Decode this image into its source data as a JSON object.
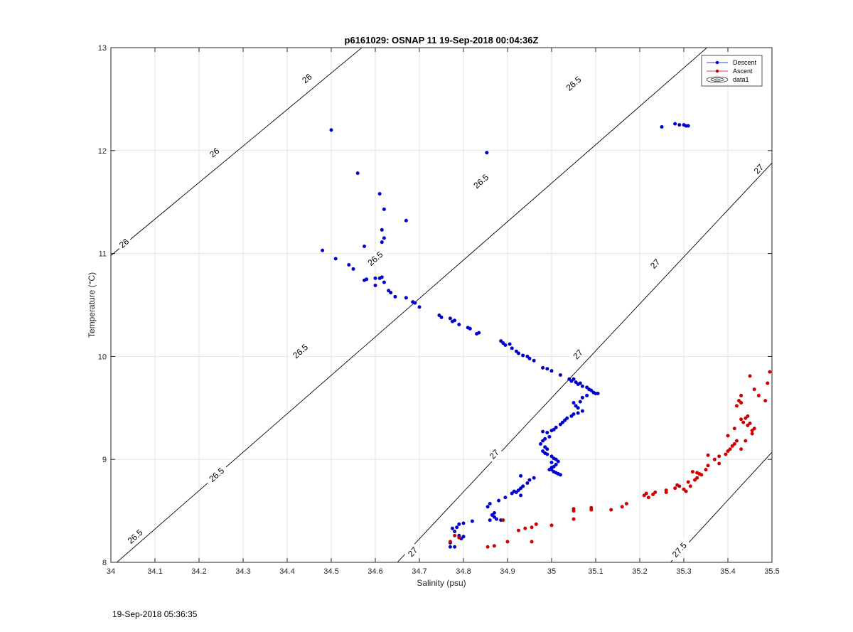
{
  "chart_data": {
    "type": "scatter",
    "title": "p6161029: OSNAP 11 19-Sep-2018 00:04:36Z",
    "xlabel": "Salinity (psu)",
    "ylabel": "Temperature (°C)",
    "xlim": [
      34,
      35.5
    ],
    "ylim": [
      8,
      13
    ],
    "x_ticks": [
      "34",
      "34.1",
      "34.2",
      "34.3",
      "34.4",
      "34.5",
      "34.6",
      "34.7",
      "34.8",
      "34.9",
      "35",
      "35.1",
      "35.2",
      "35.3",
      "35.4",
      "35.5"
    ],
    "y_ticks": [
      "8",
      "9",
      "10",
      "11",
      "12",
      "13"
    ],
    "grid": true,
    "legend_position": "top-right",
    "legend": [
      {
        "label": "Descent",
        "color": "#0000cc",
        "marker": "dot-line"
      },
      {
        "label": "Ascent",
        "color": "#cc0000",
        "marker": "dot-line"
      },
      {
        "label": "data1",
        "marker": "contour-icon"
      }
    ],
    "contours": [
      {
        "label": "26",
        "points": [
          [
            34.0,
            10.98
          ],
          [
            35.5,
            16.3
          ]
        ],
        "labels": [
          {
            "text": "26",
            "x": 34.03,
            "y": 11.1
          },
          {
            "text": "26",
            "x": 34.235,
            "y": 11.98
          },
          {
            "text": "26",
            "x": 34.445,
            "y": 12.7
          }
        ]
      },
      {
        "label": "26.5",
        "points": [
          [
            34.0,
            7.95
          ],
          [
            35.5,
            13.55
          ]
        ],
        "labels": [
          {
            "text": "26.5",
            "x": 34.055,
            "y": 8.25
          },
          {
            "text": "26.5",
            "x": 34.24,
            "y": 8.85
          },
          {
            "text": "26.5",
            "x": 34.43,
            "y": 10.05
          },
          {
            "text": "26.5",
            "x": 34.6,
            "y": 10.95
          },
          {
            "text": "26.5",
            "x": 34.84,
            "y": 11.7
          },
          {
            "text": "26.5",
            "x": 35.05,
            "y": 12.65
          }
        ]
      },
      {
        "label": "27",
        "points": [
          [
            34.65,
            8.0
          ],
          [
            35.5,
            11.88
          ]
        ],
        "labels": [
          {
            "text": "27",
            "x": 34.685,
            "y": 8.1
          },
          {
            "text": "27",
            "x": 34.87,
            "y": 9.05
          },
          {
            "text": "27",
            "x": 35.06,
            "y": 10.02
          },
          {
            "text": "27",
            "x": 35.235,
            "y": 10.9
          },
          {
            "text": "27",
            "x": 35.47,
            "y": 11.82
          }
        ]
      },
      {
        "label": "27.5",
        "points": [
          [
            35.27,
            8.0
          ],
          [
            35.5,
            9.07
          ]
        ],
        "labels": [
          {
            "text": "27.5",
            "x": 35.29,
            "y": 8.12
          }
        ]
      }
    ],
    "series": [
      {
        "name": "Descent",
        "color": "#0000cc",
        "points": [
          [
            34.853,
            11.98
          ],
          [
            34.5,
            12.2
          ],
          [
            35.25,
            12.23
          ],
          [
            35.28,
            12.26
          ],
          [
            35.29,
            12.25
          ],
          [
            35.3,
            12.25
          ],
          [
            35.305,
            12.24
          ],
          [
            35.31,
            12.24
          ],
          [
            34.56,
            11.78
          ],
          [
            34.61,
            11.58
          ],
          [
            34.62,
            11.43
          ],
          [
            34.615,
            11.23
          ],
          [
            34.62,
            11.15
          ],
          [
            34.615,
            11.11
          ],
          [
            34.67,
            11.32
          ],
          [
            34.575,
            11.07
          ],
          [
            34.48,
            11.03
          ],
          [
            34.51,
            10.95
          ],
          [
            34.54,
            10.89
          ],
          [
            34.55,
            10.85
          ],
          [
            34.575,
            10.74
          ],
          [
            34.58,
            10.75
          ],
          [
            34.6,
            10.76
          ],
          [
            34.61,
            10.76
          ],
          [
            34.615,
            10.77
          ],
          [
            34.6,
            10.69
          ],
          [
            34.62,
            10.72
          ],
          [
            34.63,
            10.64
          ],
          [
            34.635,
            10.62
          ],
          [
            34.645,
            10.58
          ],
          [
            34.67,
            10.57
          ],
          [
            34.685,
            10.53
          ],
          [
            34.69,
            10.52
          ],
          [
            34.7,
            10.48
          ],
          [
            34.745,
            10.4
          ],
          [
            34.75,
            10.38
          ],
          [
            34.77,
            10.37
          ],
          [
            34.775,
            10.34
          ],
          [
            34.78,
            10.35
          ],
          [
            34.79,
            10.31
          ],
          [
            34.81,
            10.28
          ],
          [
            34.815,
            10.27
          ],
          [
            34.83,
            10.22
          ],
          [
            34.835,
            10.23
          ],
          [
            34.885,
            10.15
          ],
          [
            34.89,
            10.13
          ],
          [
            34.895,
            10.11
          ],
          [
            34.905,
            10.12
          ],
          [
            34.91,
            10.08
          ],
          [
            34.92,
            10.05
          ],
          [
            34.925,
            10.03
          ],
          [
            34.935,
            10.01
          ],
          [
            34.945,
            10.0
          ],
          [
            34.95,
            9.98
          ],
          [
            34.96,
            9.96
          ],
          [
            34.98,
            9.89
          ],
          [
            34.99,
            9.88
          ],
          [
            35.0,
            9.86
          ],
          [
            35.02,
            9.82
          ],
          [
            35.04,
            9.78
          ],
          [
            35.045,
            9.76
          ],
          [
            35.05,
            9.78
          ],
          [
            35.055,
            9.75
          ],
          [
            35.06,
            9.73
          ],
          [
            35.065,
            9.74
          ],
          [
            35.07,
            9.71
          ],
          [
            35.08,
            9.7
          ],
          [
            35.085,
            9.68
          ],
          [
            35.09,
            9.67
          ],
          [
            35.095,
            9.65
          ],
          [
            35.1,
            9.64
          ],
          [
            35.105,
            9.64
          ],
          [
            35.08,
            9.62
          ],
          [
            35.07,
            9.6
          ],
          [
            35.065,
            9.56
          ],
          [
            35.05,
            9.55
          ],
          [
            35.055,
            9.52
          ],
          [
            35.06,
            9.5
          ],
          [
            35.07,
            9.47
          ],
          [
            35.06,
            9.45
          ],
          [
            35.05,
            9.44
          ],
          [
            35.045,
            9.42
          ],
          [
            35.035,
            9.4
          ],
          [
            35.03,
            9.38
          ],
          [
            35.025,
            9.36
          ],
          [
            35.02,
            9.34
          ],
          [
            35.01,
            9.31
          ],
          [
            35.005,
            9.29
          ],
          [
            35.0,
            9.28
          ],
          [
            34.99,
            9.26
          ],
          [
            34.98,
            9.27
          ],
          [
            34.995,
            9.22
          ],
          [
            34.985,
            9.2
          ],
          [
            34.98,
            9.18
          ],
          [
            34.975,
            9.15
          ],
          [
            34.985,
            9.12
          ],
          [
            34.99,
            9.1
          ],
          [
            34.98,
            9.08
          ],
          [
            34.985,
            9.06
          ],
          [
            34.99,
            9.05
          ],
          [
            35.0,
            9.03
          ],
          [
            35.005,
            9.01
          ],
          [
            35.01,
            9.0
          ],
          [
            35.015,
            8.98
          ],
          [
            35.0,
            8.97
          ],
          [
            35.01,
            8.95
          ],
          [
            35.005,
            8.93
          ],
          [
            35.0,
            8.92
          ],
          [
            35.0,
            8.9
          ],
          [
            35.005,
            8.88
          ],
          [
            35.01,
            8.87
          ],
          [
            35.015,
            8.86
          ],
          [
            35.02,
            8.85
          ],
          [
            34.995,
            8.9
          ],
          [
            34.96,
            8.82
          ],
          [
            34.95,
            8.8
          ],
          [
            34.945,
            8.77
          ],
          [
            34.935,
            8.74
          ],
          [
            34.93,
            8.72
          ],
          [
            34.925,
            8.7
          ],
          [
            34.92,
            8.68
          ],
          [
            34.915,
            8.69
          ],
          [
            34.91,
            8.67
          ],
          [
            34.93,
            8.84
          ],
          [
            34.93,
            8.65
          ],
          [
            34.895,
            8.63
          ],
          [
            34.88,
            8.6
          ],
          [
            34.86,
            8.57
          ],
          [
            34.855,
            8.54
          ],
          [
            34.87,
            8.48
          ],
          [
            34.865,
            8.46
          ],
          [
            34.87,
            8.44
          ],
          [
            34.875,
            8.42
          ],
          [
            34.86,
            8.41
          ],
          [
            34.885,
            8.41
          ],
          [
            34.82,
            8.4
          ],
          [
            34.8,
            8.38
          ],
          [
            34.79,
            8.37
          ],
          [
            34.785,
            8.34
          ],
          [
            34.775,
            8.33
          ],
          [
            34.78,
            8.3
          ],
          [
            34.79,
            8.26
          ],
          [
            34.8,
            8.25
          ],
          [
            34.795,
            8.23
          ],
          [
            34.77,
            8.19
          ],
          [
            34.77,
            8.15
          ],
          [
            34.78,
            8.15
          ]
        ]
      },
      {
        "name": "Ascent",
        "color": "#cc0000",
        "points": [
          [
            34.77,
            8.2
          ],
          [
            34.78,
            8.26
          ],
          [
            34.79,
            8.24
          ],
          [
            34.855,
            8.15
          ],
          [
            34.87,
            8.16
          ],
          [
            34.9,
            8.2
          ],
          [
            34.89,
            8.41
          ],
          [
            34.925,
            8.31
          ],
          [
            34.94,
            8.33
          ],
          [
            34.955,
            8.34
          ],
          [
            34.965,
            8.37
          ],
          [
            34.955,
            8.2
          ],
          [
            35.0,
            8.36
          ],
          [
            35.05,
            8.52
          ],
          [
            35.05,
            8.5
          ],
          [
            35.05,
            8.42
          ],
          [
            35.09,
            8.53
          ],
          [
            35.09,
            8.51
          ],
          [
            35.135,
            8.51
          ],
          [
            35.16,
            8.54
          ],
          [
            35.17,
            8.57
          ],
          [
            35.21,
            8.65
          ],
          [
            35.215,
            8.67
          ],
          [
            35.22,
            8.63
          ],
          [
            35.23,
            8.66
          ],
          [
            35.235,
            8.68
          ],
          [
            35.26,
            8.68
          ],
          [
            35.26,
            8.7
          ],
          [
            35.28,
            8.72
          ],
          [
            35.285,
            8.75
          ],
          [
            35.29,
            8.74
          ],
          [
            35.3,
            8.71
          ],
          [
            35.305,
            8.69
          ],
          [
            35.31,
            8.78
          ],
          [
            35.315,
            8.74
          ],
          [
            35.32,
            8.88
          ],
          [
            35.33,
            8.87
          ],
          [
            35.325,
            8.8
          ],
          [
            35.33,
            8.82
          ],
          [
            35.335,
            8.86
          ],
          [
            35.34,
            8.85
          ],
          [
            35.35,
            8.9
          ],
          [
            35.355,
            8.94
          ],
          [
            35.355,
            9.04
          ],
          [
            35.37,
            9.0
          ],
          [
            35.38,
            8.96
          ],
          [
            35.38,
            9.03
          ],
          [
            35.395,
            9.05
          ],
          [
            35.4,
            9.08
          ],
          [
            35.4,
            9.23
          ],
          [
            35.405,
            9.1
          ],
          [
            35.41,
            9.13
          ],
          [
            35.415,
            9.15
          ],
          [
            35.42,
            9.18
          ],
          [
            35.415,
            9.3
          ],
          [
            35.42,
            9.52
          ],
          [
            35.425,
            9.57
          ],
          [
            35.43,
            9.55
          ],
          [
            35.43,
            9.39
          ],
          [
            35.435,
            9.36
          ],
          [
            35.44,
            9.4
          ],
          [
            35.445,
            9.33
          ],
          [
            35.445,
            9.42
          ],
          [
            35.45,
            9.35
          ],
          [
            35.455,
            9.28
          ],
          [
            35.455,
            9.25
          ],
          [
            35.46,
            9.3
          ],
          [
            35.43,
            9.1
          ],
          [
            35.44,
            9.18
          ],
          [
            35.45,
            9.81
          ],
          [
            35.46,
            9.68
          ],
          [
            35.47,
            9.62
          ],
          [
            35.485,
            9.57
          ],
          [
            35.49,
            9.74
          ],
          [
            35.495,
            9.85
          ],
          [
            35.43,
            9.62
          ]
        ]
      }
    ]
  },
  "footer_text": "19-Sep-2018 05:36:35"
}
